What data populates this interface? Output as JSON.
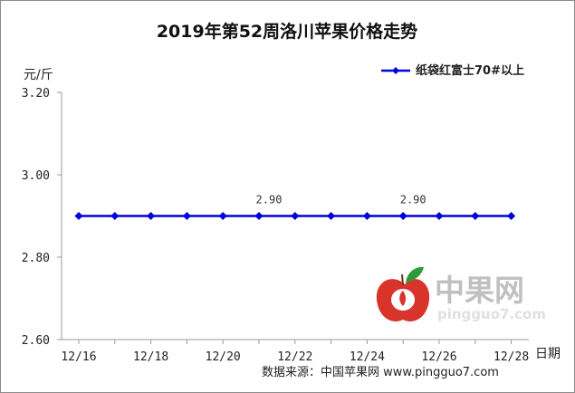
{
  "chart_data": {
    "type": "line",
    "title": "2019年第52周洛川苹果价格走势",
    "ylabel": "元/斤",
    "xlabel": "日期",
    "categories": [
      "12/16",
      "12/17",
      "12/18",
      "12/19",
      "12/20",
      "12/21",
      "12/22",
      "12/23",
      "12/24",
      "12/25",
      "12/26",
      "12/27",
      "12/28"
    ],
    "x_tick_labels": [
      "12/16",
      "12/18",
      "12/20",
      "12/22",
      "12/24",
      "12/26",
      "12/28"
    ],
    "y_tick_labels": [
      "3.20",
      "3.00",
      "2.80",
      "2.60"
    ],
    "ylim": [
      2.6,
      3.2
    ],
    "series": [
      {
        "name": "纸袋红富士70#以上",
        "values": [
          2.9,
          2.9,
          2.9,
          2.9,
          2.9,
          2.9,
          2.9,
          2.9,
          2.9,
          2.9,
          2.9,
          2.9,
          2.9
        ],
        "color": "#0000dd"
      }
    ],
    "data_labels": [
      {
        "category": "12/21",
        "text": "2.90"
      },
      {
        "category": "12/25",
        "text": "2.90"
      }
    ],
    "grid": false,
    "legend_position": "top-right"
  },
  "source": "数据来源：中国苹果网 www.pingguo7.com",
  "watermark": {
    "name": "中果网",
    "url": "pingguo7.com",
    "colors": {
      "apple": "#d9342b",
      "leaf": "#2f9a3a",
      "text_cn": "#c0c0c0"
    }
  }
}
